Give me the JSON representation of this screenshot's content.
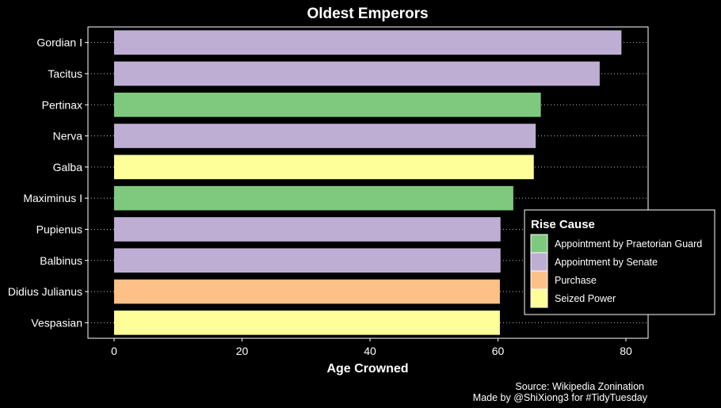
{
  "chart_data": {
    "type": "bar",
    "orientation": "horizontal",
    "title": "Oldest Emperors",
    "xlabel": "Age Crowned",
    "ylabel": "",
    "xlim": [
      0,
      84
    ],
    "xticks": [
      0,
      20,
      40,
      60,
      80
    ],
    "categories": [
      "Gordian I",
      "Tacitus",
      "Pertinax",
      "Nerva",
      "Galba",
      "Maximinus I",
      "Pupienus",
      "Balbinus",
      "Didius Julianus",
      "Vespasian"
    ],
    "values": [
      79.3,
      75.9,
      66.7,
      65.9,
      65.6,
      62.4,
      60.4,
      60.4,
      60.3,
      60.3
    ],
    "rise_cause": [
      "Appointment by Senate",
      "Appointment by Senate",
      "Appointment by Praetorian Guard",
      "Appointment by Senate",
      "Seized Power",
      "Appointment by Praetorian Guard",
      "Appointment by Senate",
      "Appointment by Senate",
      "Purchase",
      "Seized Power"
    ],
    "grid": "dotted horizontal",
    "background": "#000000",
    "legend": {
      "title": "Rise Cause",
      "placement": "right, inside bottom",
      "entries": [
        {
          "label": "Appointment by Praetorian Guard",
          "color": "#7fc97f"
        },
        {
          "label": "Appointment by Senate",
          "color": "#beaed4"
        },
        {
          "label": "Purchase",
          "color": "#fdc086"
        },
        {
          "label": "Seized Power",
          "color": "#ffff99"
        }
      ]
    },
    "caption": [
      "Source: Wikipedia Zonination",
      "Made by @ShiXiong3 for #TidyTuesday"
    ]
  }
}
